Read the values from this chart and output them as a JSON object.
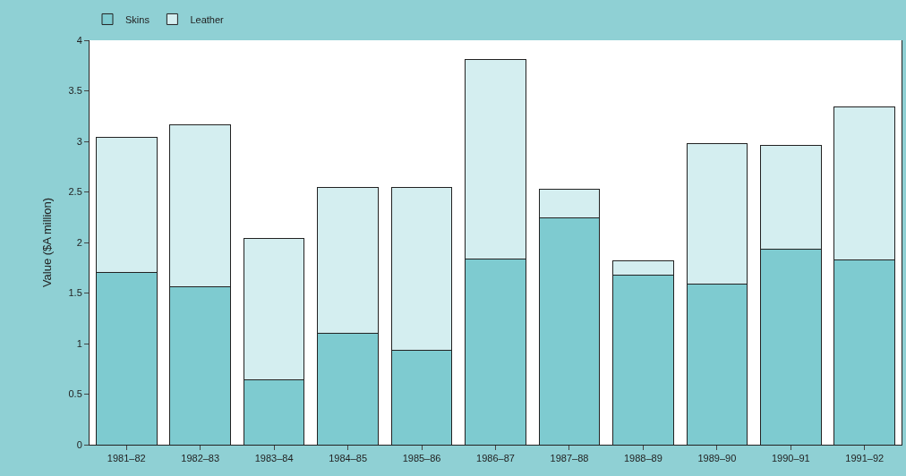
{
  "chart_data": {
    "type": "bar",
    "stacked": true,
    "ylabel": "Value ($A million)",
    "categories": [
      "1981–82",
      "1982–83",
      "1983–84",
      "1984–85",
      "1985–86",
      "1986–87",
      "1987–88",
      "1988–89",
      "1989–90",
      "1990–91",
      "1991–92"
    ],
    "series": [
      {
        "name": "Skins",
        "color": "#7ecbd0",
        "values": [
          1.7,
          1.56,
          0.64,
          1.1,
          0.93,
          1.84,
          2.24,
          1.68,
          1.59,
          1.93,
          1.83
        ]
      },
      {
        "name": "Leather",
        "color": "#d4eef0",
        "values": [
          1.34,
          1.6,
          1.4,
          1.44,
          1.61,
          1.97,
          0.29,
          0.14,
          1.39,
          1.03,
          1.51
        ]
      }
    ],
    "ylim": [
      0,
      4
    ],
    "yticks": [
      0,
      0.5,
      1,
      1.5,
      2,
      2.5,
      3,
      3.5,
      4
    ],
    "legend": "top left"
  }
}
